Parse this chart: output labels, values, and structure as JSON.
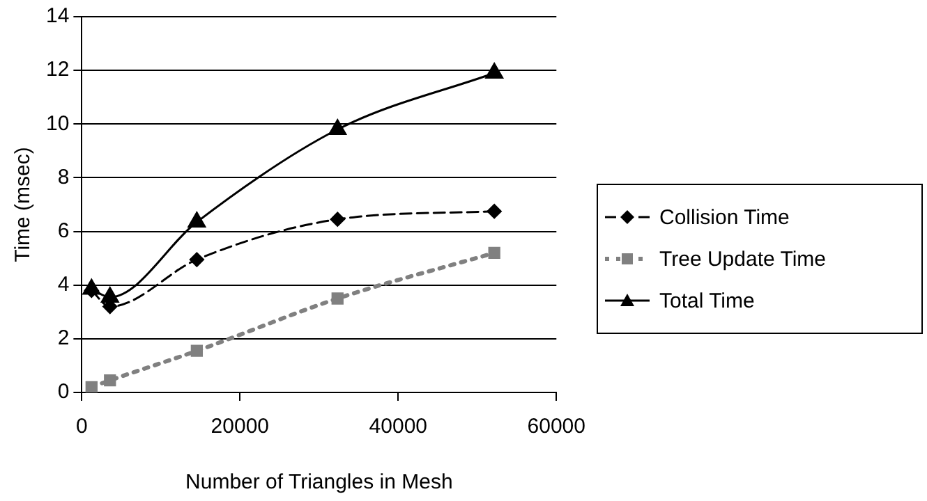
{
  "chart_data": {
    "type": "line",
    "xlabel": "Number of Triangles in Mesh",
    "ylabel": "Time (msec)",
    "xlim": [
      0,
      60000
    ],
    "xticks": [
      0,
      20000,
      40000,
      60000
    ],
    "ylim": [
      0,
      14
    ],
    "yticks": [
      0,
      2,
      4,
      6,
      8,
      10,
      12,
      14
    ],
    "grid": "y",
    "legend": "right",
    "series": [
      {
        "name": "Collision Time",
        "color": "#000000",
        "marker": "diamond",
        "line_style": "dashed",
        "x": [
          1230,
          3560,
          14540,
          32330,
          52150
        ],
        "values": [
          3.8,
          3.2,
          4.95,
          6.45,
          6.75
        ]
      },
      {
        "name": "Tree Update Time",
        "color": "#808080",
        "marker": "square",
        "line_style": "dotted",
        "x": [
          1230,
          3560,
          14540,
          32330,
          52150
        ],
        "values": [
          0.2,
          0.45,
          1.55,
          3.5,
          5.2
        ]
      },
      {
        "name": "Total Time",
        "color": "#000000",
        "marker": "triangle",
        "line_style": "solid",
        "x": [
          1230,
          3560,
          14540,
          32330,
          52150
        ],
        "values": [
          3.85,
          3.55,
          6.35,
          9.8,
          11.9
        ]
      }
    ]
  }
}
